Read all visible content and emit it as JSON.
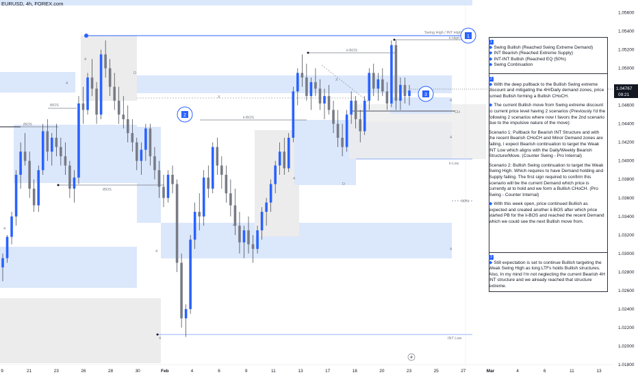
{
  "symbol_title": "EURUSD, 4h, FOREX.com",
  "chart_data": {
    "type": "candlestick",
    "y_axis_range": [
      1.018,
      1.057
    ],
    "y_ticks": [
      "1.05600",
      "1.05400",
      "1.05200",
      "1.05000",
      "1.04800",
      "1.04600",
      "1.04400",
      "1.04200",
      "1.04000",
      "1.03800",
      "1.03600",
      "1.03400",
      "1.03200",
      "1.03000",
      "1.02800",
      "1.02600",
      "1.02400",
      "1.02200",
      "1.02000",
      "1.01800"
    ],
    "x_ticks": [
      "9",
      "21",
      "23",
      "26",
      "28",
      "30",
      "Feb",
      "4",
      "6",
      "9",
      "11",
      "13",
      "17",
      "18",
      "20",
      "23",
      "25",
      "27",
      "Mar",
      "4",
      "6",
      "11",
      "13"
    ],
    "last_price": "1.04767",
    "countdown": "09:21",
    "candles": [
      [
        1.0285,
        1.03,
        1.027,
        1.0295
      ],
      [
        1.0295,
        1.032,
        1.029,
        1.0318
      ],
      [
        1.0318,
        1.0345,
        1.031,
        1.034
      ],
      [
        1.034,
        1.039,
        1.033,
        1.0385
      ],
      [
        1.0385,
        1.042,
        1.037,
        1.041
      ],
      [
        1.041,
        1.043,
        1.0395,
        1.04
      ],
      [
        1.04,
        1.041,
        1.036,
        1.037
      ],
      [
        1.037,
        1.038,
        1.0345,
        1.0352
      ],
      [
        1.0352,
        1.0395,
        1.0345,
        1.039
      ],
      [
        1.039,
        1.044,
        1.0385,
        1.0432
      ],
      [
        1.0432,
        1.0445,
        1.04,
        1.041
      ],
      [
        1.041,
        1.043,
        1.0395,
        1.0425
      ],
      [
        1.0425,
        1.044,
        1.0405,
        1.0415
      ],
      [
        1.0415,
        1.0425,
        1.0395,
        1.0405
      ],
      [
        1.0405,
        1.042,
        1.0385,
        1.0395
      ],
      [
        1.0395,
        1.04,
        1.036,
        1.037
      ],
      [
        1.037,
        1.039,
        1.0355,
        1.0382
      ],
      [
        1.0382,
        1.047,
        1.0375,
        1.0462
      ],
      [
        1.0462,
        1.048,
        1.044,
        1.0455
      ],
      [
        1.0455,
        1.0495,
        1.045,
        1.049
      ],
      [
        1.049,
        1.051,
        1.047,
        1.0478
      ],
      [
        1.0478,
        1.0485,
        1.044,
        1.045
      ],
      [
        1.045,
        1.052,
        1.0445,
        1.0515
      ],
      [
        1.0515,
        1.053,
        1.049,
        1.05
      ],
      [
        1.05,
        1.051,
        1.047,
        1.048
      ],
      [
        1.048,
        1.0495,
        1.0455,
        1.0465
      ],
      [
        1.0465,
        1.048,
        1.044,
        1.045
      ],
      [
        1.045,
        1.047,
        1.0435,
        1.0445
      ],
      [
        1.0445,
        1.046,
        1.042,
        1.043
      ],
      [
        1.043,
        1.0445,
        1.041,
        1.042
      ],
      [
        1.042,
        1.0425,
        1.039,
        1.04
      ],
      [
        1.04,
        1.042,
        1.0385,
        1.0412
      ],
      [
        1.0412,
        1.044,
        1.04,
        1.0435
      ],
      [
        1.0435,
        1.044,
        1.0395,
        1.0405
      ],
      [
        1.0405,
        1.0415,
        1.038,
        1.039
      ],
      [
        1.039,
        1.04,
        1.036,
        1.0372
      ],
      [
        1.0372,
        1.0385,
        1.035,
        1.036
      ],
      [
        1.036,
        1.039,
        1.0355,
        1.0385
      ],
      [
        1.0385,
        1.0395,
        1.0365,
        1.0375
      ],
      [
        1.0375,
        1.038,
        1.028,
        1.029
      ],
      [
        1.029,
        1.03,
        1.022,
        1.023
      ],
      [
        1.023,
        1.0245,
        1.021,
        1.024
      ],
      [
        1.024,
        1.032,
        1.0235,
        1.0315
      ],
      [
        1.0315,
        1.0355,
        1.0305,
        1.0345
      ],
      [
        1.0345,
        1.0365,
        1.0325,
        1.034
      ],
      [
        1.034,
        1.039,
        1.033,
        1.0382
      ],
      [
        1.0382,
        1.0395,
        1.036,
        1.037
      ],
      [
        1.037,
        1.042,
        1.0365,
        1.0415
      ],
      [
        1.0415,
        1.0425,
        1.0385,
        1.0395
      ],
      [
        1.0395,
        1.0405,
        1.037,
        1.0385
      ],
      [
        1.0385,
        1.0395,
        1.0355,
        1.0365
      ],
      [
        1.0365,
        1.038,
        1.034,
        1.0352
      ],
      [
        1.0352,
        1.037,
        1.032,
        1.033
      ],
      [
        1.033,
        1.0345,
        1.03,
        1.0312
      ],
      [
        1.0312,
        1.033,
        1.0295,
        1.0325
      ],
      [
        1.0325,
        1.034,
        1.03,
        1.031
      ],
      [
        1.031,
        1.032,
        1.029,
        1.0305
      ],
      [
        1.0305,
        1.033,
        1.03,
        1.0325
      ],
      [
        1.0325,
        1.035,
        1.0315,
        1.0345
      ],
      [
        1.0345,
        1.036,
        1.033,
        1.0355
      ],
      [
        1.0355,
        1.038,
        1.0345,
        1.0375
      ],
      [
        1.0375,
        1.04,
        1.0365,
        1.0395
      ],
      [
        1.0395,
        1.042,
        1.0385,
        1.041
      ],
      [
        1.041,
        1.0425,
        1.0385,
        1.0392
      ],
      [
        1.0392,
        1.043,
        1.0388,
        1.0425
      ],
      [
        1.0425,
        1.048,
        1.042,
        1.0475
      ],
      [
        1.0475,
        1.05,
        1.046,
        1.0495
      ],
      [
        1.0495,
        1.0515,
        1.048,
        1.049
      ],
      [
        1.049,
        1.0505,
        1.0465,
        1.047
      ],
      [
        1.047,
        1.049,
        1.0455,
        1.0485
      ],
      [
        1.0485,
        1.05,
        1.047,
        1.0478
      ],
      [
        1.0478,
        1.0488,
        1.0455,
        1.0462
      ],
      [
        1.0462,
        1.0478,
        1.0445,
        1.047
      ],
      [
        1.047,
        1.0482,
        1.045,
        1.0455
      ],
      [
        1.0455,
        1.0465,
        1.043,
        1.044
      ],
      [
        1.044,
        1.0455,
        1.0415,
        1.0425
      ],
      [
        1.0425,
        1.044,
        1.0405,
        1.0415
      ],
      [
        1.0415,
        1.0455,
        1.041,
        1.045
      ],
      [
        1.045,
        1.0475,
        1.044,
        1.0465
      ],
      [
        1.0465,
        1.047,
        1.0435,
        1.0445
      ],
      [
        1.0445,
        1.0455,
        1.042,
        1.0432
      ],
      [
        1.0432,
        1.047,
        1.0428,
        1.0465
      ],
      [
        1.0465,
        1.05,
        1.0455,
        1.0495
      ],
      [
        1.0495,
        1.0505,
        1.047,
        1.0478
      ],
      [
        1.0478,
        1.0495,
        1.0465,
        1.0488
      ],
      [
        1.0488,
        1.05,
        1.047,
        1.0475
      ],
      [
        1.0475,
        1.0485,
        1.0455,
        1.0462
      ],
      [
        1.0462,
        1.053,
        1.0458,
        1.0525
      ],
      [
        1.0525,
        1.053,
        1.0455,
        1.0465
      ],
      [
        1.0465,
        1.049,
        1.0455,
        1.0482
      ],
      [
        1.0482,
        1.049,
        1.0462,
        1.047
      ],
      [
        1.047,
        1.0482,
        1.046,
        1.0476
      ]
    ]
  },
  "labels": {
    "swing_high": "Swing High / INT High",
    "int_high_small": "ii High",
    "ii_bos_1": "ii-BOS",
    "ii_bos_2": "ii-BOS",
    "ibos_1": "iBOS",
    "ibos_2": "iBOS",
    "ibos_3": "iBOS",
    "ch": "CH",
    "ii_low": "ii-Low",
    "int_low": "INT Low",
    "fifty": "50%",
    "x1": "X",
    "x2": "X",
    "d1": "D",
    "d2": "D",
    "four_labels": [
      "4",
      "4",
      "4",
      "4",
      "4",
      "4",
      "4",
      "4",
      "4",
      "4"
    ]
  },
  "markers": [
    "1",
    "2",
    "3"
  ],
  "annotation": {
    "n1": "1",
    "list1": [
      "Swing Bullish (Reached Swing Extreme Demand)",
      "INT Bearish (Reached Extreme Supply)",
      "INT-INT Bullish (Reached EQ (50%)",
      "Swing Continuation"
    ],
    "n2": "2",
    "p1": "With the deep pullback to the Bullish Swing extreme discount and mitigating the 4H/Daily demand zones, price turned Bullish forming a Bullish CHoCH.",
    "p2": "The current Bullish move from Swing extreme discount to current price level having 2 scenarios (Previously I'd the following 2 scenarios where now I favors the 2nd scenario due to the impulsive nature of the move):",
    "p3": "Scenario 1: Pullback for Bearish INT Structure and with the recent Bearish CHoCH and Minor Demand zones are failing, I expect Bearish continuation to target the Weak INT Low which aligns with the Daily/Weekly Bearish Structure/Move. (Counter Swing - Pro Internal)",
    "p4": "Scenario 2: Bullish Swing continuation to target the Weak Swing High. Which requires to have Demand holding and Supply failing. The first sign required to confirm this scenario will be the current Demand which price is currently at to hold and we form a Bullish CHoCH. (Pro Swing - Counter Internal)",
    "p5": "With this week open, price continued Bullish as expected and created another ii-BOS after which price started PB for the ii-BOS and reached the recent Demand which we could see the next Bullish move from.",
    "n3": "3",
    "p6": "Still expectation is set to continue Bullish targeting the Weak Swing High as long LTFs holds Bullish structures. Also, In my mind I'm not neglecting the current Bearish 4H INT structure and we already reached that structure extreme."
  },
  "colors": {
    "bull": "#2962ff",
    "bear": "#787b86",
    "zone_blue": "#dbe7fb",
    "zone_gray": "#ececec",
    "price_tag": "#131722",
    "marker_blue": "#2962ff"
  }
}
